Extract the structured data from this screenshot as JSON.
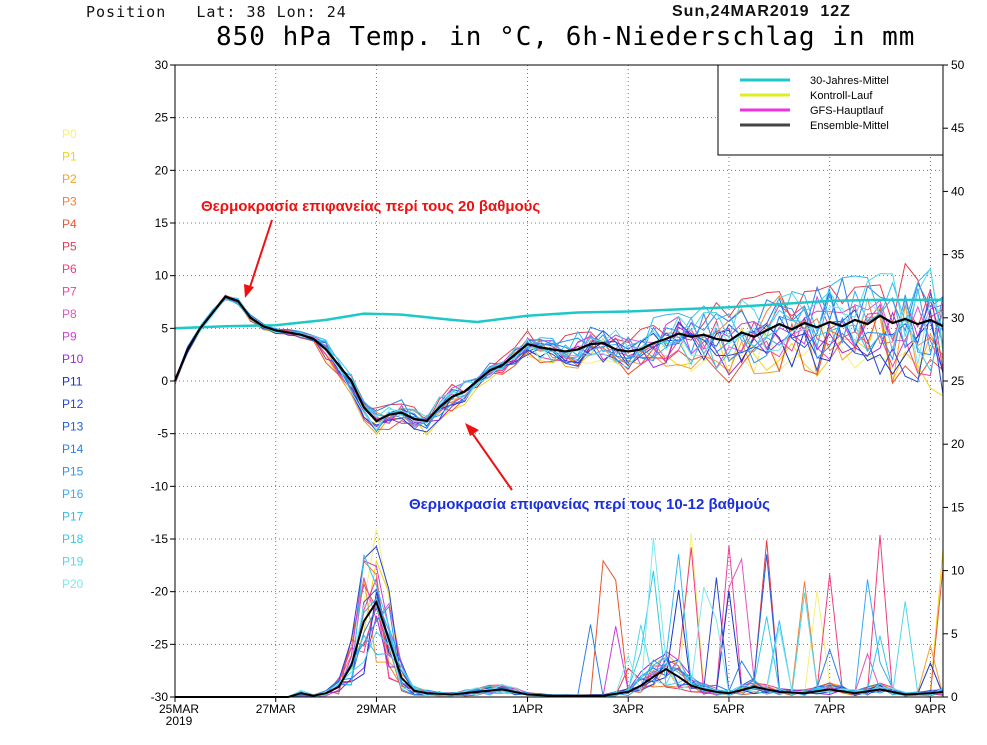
{
  "header": {
    "position": "Position   Lat: 38 Lon: 24",
    "datetime": "Sun,24MAR2019  12Z",
    "title": "850 hPa Temp. in °C, 6h-Niederschlag in mm"
  },
  "members": [
    "P0",
    "P1",
    "P2",
    "P3",
    "P4",
    "P5",
    "P6",
    "P7",
    "P8",
    "P9",
    "P10",
    "P11",
    "P12",
    "P13",
    "P14",
    "P15",
    "P16",
    "P17",
    "P18",
    "P19",
    "P20"
  ],
  "member_colors": [
    "#f4f07a",
    "#f2d21a",
    "#f2a12a",
    "#ee7f3a",
    "#e8552f",
    "#e63b4a",
    "#f03c7c",
    "#e8449e",
    "#e055c0",
    "#cc3fd8",
    "#9b2bd8",
    "#1a34c4",
    "#2446d6",
    "#1f5fe0",
    "#2a7fe8",
    "#2a95f0",
    "#3aa8f0",
    "#36b9ef",
    "#35c8e8",
    "#4fd8e6",
    "#7fe8ee"
  ],
  "annotations": [
    {
      "text": "Θερμοκρασία επιφανείας περί τους 20 βαθμούς",
      "color": "#ee1111"
    },
    {
      "text": "Θερμοκρασία επιφανείας περί τους 10-12 βαθμούς",
      "color": "#1a2fdd"
    }
  ],
  "chart_data": {
    "type": "line",
    "xlabel": "",
    "ylabel": "",
    "x_tick_labels": [
      "25MAR 2019",
      "27MAR",
      "29MAR",
      "1APR",
      "3APR",
      "5APR",
      "7APR",
      "9APR"
    ],
    "x_tick_days": [
      0,
      2,
      4,
      7,
      9,
      11,
      13,
      15
    ],
    "xlim_days": [
      0,
      15.25
    ],
    "ylim_left": [
      -30,
      30
    ],
    "y_ticks_left": [
      30,
      25,
      20,
      15,
      10,
      5,
      0,
      -5,
      -10,
      -15,
      -20,
      -25,
      -30
    ],
    "ylim_right": [
      0,
      50
    ],
    "y_ticks_right": [
      50,
      45,
      40,
      35,
      30,
      25,
      20,
      15,
      10,
      5,
      0
    ],
    "grid": true,
    "legend_position": "top-right",
    "legend": [
      {
        "name": "30-Jahres-Mittel",
        "color": "#1ec8c8"
      },
      {
        "name": "Kontroll-Lauf",
        "color": "#ddee22"
      },
      {
        "name": "GFS-Hauptlauf",
        "color": "#ee33dd"
      },
      {
        "name": "Ensemble-Mittel",
        "color": "#444444"
      }
    ],
    "series": [
      {
        "name": "30-Jahres-Mittel",
        "axis": "left",
        "x": [
          0,
          1,
          2,
          3,
          3.75,
          4.5,
          5.5,
          6,
          7,
          8,
          9,
          10,
          11,
          12,
          13,
          14,
          15.25
        ],
        "y": [
          5.0,
          5.2,
          5.3,
          5.8,
          6.4,
          6.3,
          5.8,
          5.6,
          6.2,
          6.5,
          6.6,
          6.8,
          7.0,
          7.3,
          7.6,
          7.7,
          7.7
        ]
      },
      {
        "name": "Ensemble-Mittel",
        "axis": "left",
        "x": [
          0,
          0.25,
          0.5,
          0.75,
          1,
          1.25,
          1.5,
          1.75,
          2,
          2.25,
          2.5,
          2.75,
          3,
          3.25,
          3.5,
          3.75,
          4,
          4.25,
          4.5,
          4.75,
          5,
          5.25,
          5.5,
          5.75,
          6,
          6.25,
          6.5,
          6.75,
          7,
          7.25,
          7.5,
          7.75,
          8,
          8.25,
          8.5,
          8.75,
          9,
          9.25,
          9.5,
          9.75,
          10,
          10.25,
          10.5,
          10.75,
          11,
          11.25,
          11.5,
          11.75,
          12,
          12.25,
          12.5,
          12.75,
          13,
          13.25,
          13.5,
          13.75,
          14,
          14.25,
          14.5,
          14.75,
          15,
          15.25
        ],
        "y": [
          0.0,
          3.0,
          5.0,
          6.5,
          8.0,
          7.6,
          6.0,
          5.2,
          4.8,
          4.6,
          4.4,
          4.0,
          3.0,
          1.5,
          0.0,
          -2.5,
          -3.8,
          -3.2,
          -3.0,
          -3.6,
          -3.8,
          -2.5,
          -1.5,
          -1.0,
          0.0,
          1.0,
          1.5,
          2.5,
          3.5,
          3.2,
          3.0,
          2.8,
          3.0,
          3.5,
          3.6,
          3.0,
          2.8,
          3.0,
          3.6,
          4.0,
          4.5,
          4.2,
          4.4,
          4.0,
          3.8,
          4.6,
          4.2,
          4.8,
          5.4,
          4.9,
          5.5,
          5.1,
          5.6,
          5.2,
          5.8,
          5.4,
          6.2,
          5.5,
          5.9,
          5.4,
          5.8,
          5.2
        ]
      },
      {
        "name": "Ensemble-Mittel Niederschlag (mm)",
        "axis": "right",
        "x": [
          0,
          2.25,
          2.5,
          2.75,
          3,
          3.25,
          3.5,
          3.75,
          4,
          4.25,
          4.5,
          4.75,
          5,
          5.5,
          6,
          6.5,
          7,
          7.5,
          8,
          8.5,
          9,
          9.25,
          9.5,
          9.75,
          10,
          10.25,
          10.5,
          10.75,
          11,
          11.5,
          12,
          12.5,
          13,
          13.5,
          14,
          14.5,
          15,
          15.25
        ],
        "y": [
          0,
          0,
          0.3,
          0.1,
          0.3,
          0.8,
          2.5,
          6.0,
          7.5,
          4.5,
          1.5,
          0.5,
          0.3,
          0.2,
          0.4,
          0.6,
          0.2,
          0.1,
          0.1,
          0.1,
          0.4,
          0.9,
          1.6,
          2.2,
          1.6,
          0.9,
          0.6,
          0.4,
          0.3,
          0.8,
          0.4,
          0.3,
          0.6,
          0.3,
          0.6,
          0.2,
          0.3,
          0.4
        ]
      }
    ]
  }
}
